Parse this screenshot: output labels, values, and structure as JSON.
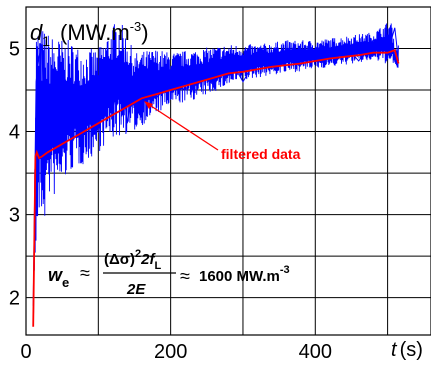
{
  "chart_data": {
    "type": "line",
    "title": "",
    "ylabel_var": "d",
    "ylabel_sub": "1",
    "ylabel_unit": "(MW.m",
    "ylabel_exp": "-3",
    "ylabel_close": ")",
    "xlabel_var": "t",
    "xlabel_unit": "(s)",
    "xlim": [
      0,
      560
    ],
    "ylim": [
      1.55,
      5.5
    ],
    "x_ticks": [
      0,
      200,
      400
    ],
    "y_ticks": [
      2,
      3,
      4,
      5
    ],
    "x_tick_labels": [
      "0",
      "200",
      "400"
    ],
    "y_tick_labels": [
      "2",
      "3",
      "4",
      "5"
    ],
    "grid": true,
    "series": [
      {
        "color": "#0000ff",
        "x": [
          10,
          14,
          18,
          22,
          26,
          30,
          35,
          40,
          45,
          50,
          60,
          70,
          80,
          90,
          100,
          110,
          120,
          130,
          140,
          150,
          160,
          170,
          180,
          200,
          220,
          240,
          260,
          280,
          300,
          320,
          340,
          360,
          380,
          400,
          420,
          440,
          460,
          480,
          500,
          510,
          515
        ],
        "y": [
          1.9,
          4.6,
          4.9,
          5.05,
          3.7,
          4.6,
          3.9,
          4.5,
          3.8,
          4.6,
          4.0,
          4.3,
          4.1,
          4.6,
          4.1,
          4.5,
          4.2,
          4.9,
          4.1,
          4.7,
          4.3,
          4.8,
          4.4,
          4.6,
          4.5,
          4.75,
          4.55,
          4.9,
          4.6,
          4.9,
          4.75,
          5.0,
          4.8,
          5.0,
          4.85,
          5.05,
          4.85,
          5.1,
          4.95,
          5.25,
          4.85
        ],
        "envelope_upper": [
          [
            10,
            1.7
          ],
          [
            14,
            5.3
          ],
          [
            20,
            5.3
          ],
          [
            30,
            5.2
          ],
          [
            40,
            5.15
          ],
          [
            60,
            5.1
          ],
          [
            80,
            5.0
          ],
          [
            100,
            5.0
          ],
          [
            120,
            5.3
          ],
          [
            130,
            5.35
          ],
          [
            150,
            4.95
          ],
          [
            180,
            5.0
          ],
          [
            200,
            4.95
          ],
          [
            240,
            5.0
          ],
          [
            280,
            5.05
          ],
          [
            320,
            5.05
          ],
          [
            360,
            5.1
          ],
          [
            400,
            5.1
          ],
          [
            440,
            5.15
          ],
          [
            480,
            5.2
          ],
          [
            505,
            5.35
          ],
          [
            510,
            5.0
          ],
          [
            515,
            5.05
          ]
        ],
        "envelope_lower": [
          [
            10,
            1.7
          ],
          [
            14,
            2.5
          ],
          [
            20,
            3.0
          ],
          [
            25,
            2.85
          ],
          [
            30,
            3.2
          ],
          [
            40,
            3.2
          ],
          [
            60,
            3.5
          ],
          [
            80,
            3.6
          ],
          [
            100,
            3.75
          ],
          [
            120,
            3.9
          ],
          [
            150,
            4.0
          ],
          [
            180,
            4.2
          ],
          [
            200,
            4.3
          ],
          [
            240,
            4.4
          ],
          [
            280,
            4.55
          ],
          [
            320,
            4.65
          ],
          [
            360,
            4.7
          ],
          [
            400,
            4.75
          ],
          [
            440,
            4.8
          ],
          [
            480,
            4.85
          ],
          [
            505,
            4.8
          ],
          [
            515,
            4.75
          ]
        ]
      },
      {
        "color": "#ff0000",
        "x": [
          10,
          13,
          15,
          18,
          22,
          30,
          40,
          60,
          80,
          100,
          120,
          140,
          160,
          180,
          200,
          220,
          240,
          260,
          280,
          300,
          320,
          340,
          360,
          380,
          400,
          420,
          440,
          460,
          480,
          500,
          510,
          515
        ],
        "y": [
          1.65,
          3.7,
          3.75,
          3.68,
          3.7,
          3.75,
          3.8,
          3.9,
          4.0,
          4.1,
          4.2,
          4.3,
          4.4,
          4.45,
          4.5,
          4.55,
          4.6,
          4.65,
          4.7,
          4.72,
          4.75,
          4.78,
          4.8,
          4.82,
          4.85,
          4.88,
          4.9,
          4.92,
          4.95,
          4.95,
          4.98,
          4.82
        ]
      }
    ],
    "annotations": [
      {
        "text": "filtered data",
        "color": "#ff0000"
      }
    ],
    "formula": {
      "lhs_var": "w",
      "lhs_sub": "e",
      "approx": "≈",
      "numerator": "(Δσ)",
      "numerator_exp": "2",
      "numerator_rest": "2f",
      "numerator_sub": "L",
      "denominator": "2E",
      "approx2": "≈",
      "rhs_value": "1600 MW.m",
      "rhs_exp": "-3"
    }
  }
}
